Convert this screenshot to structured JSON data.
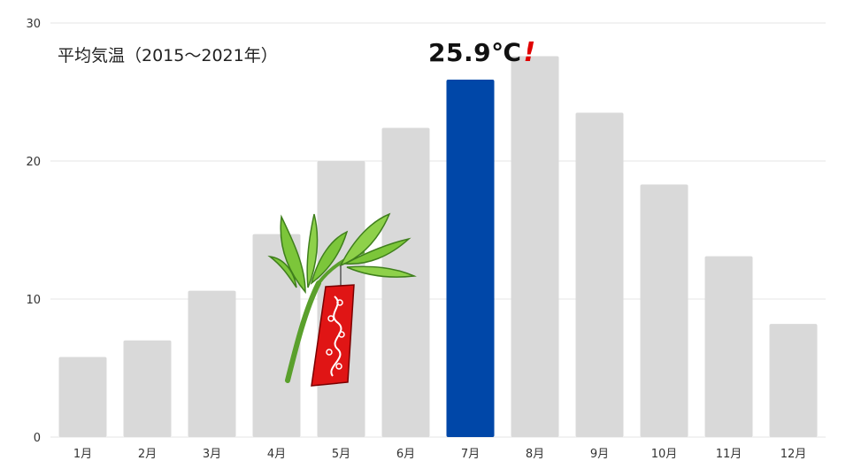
{
  "chart_data": {
    "type": "bar",
    "title": "平均気温（2015〜2021年）",
    "categories": [
      "1月",
      "2月",
      "3月",
      "4月",
      "5月",
      "6月",
      "7月",
      "8月",
      "9月",
      "10月",
      "11月",
      "12月"
    ],
    "series": [
      {
        "values": [
          5.8,
          7.0,
          10.6,
          14.7,
          20.0,
          22.4,
          25.9,
          27.6,
          23.5,
          18.3,
          13.1,
          8.2
        ]
      }
    ],
    "ylim": [
      0,
      30
    ],
    "yticks": [
      0,
      10,
      20,
      30
    ],
    "grid": true,
    "highlight": {
      "category": "7月",
      "label": "25.9℃",
      "mark": "!"
    },
    "colors": {
      "bar": "#d9d9d9",
      "highlight": "#0047a8",
      "grid": "#e6e6e6",
      "exclaim": "#e00000"
    }
  },
  "decoration": {
    "icon": "tanabata-bamboo-icon"
  }
}
